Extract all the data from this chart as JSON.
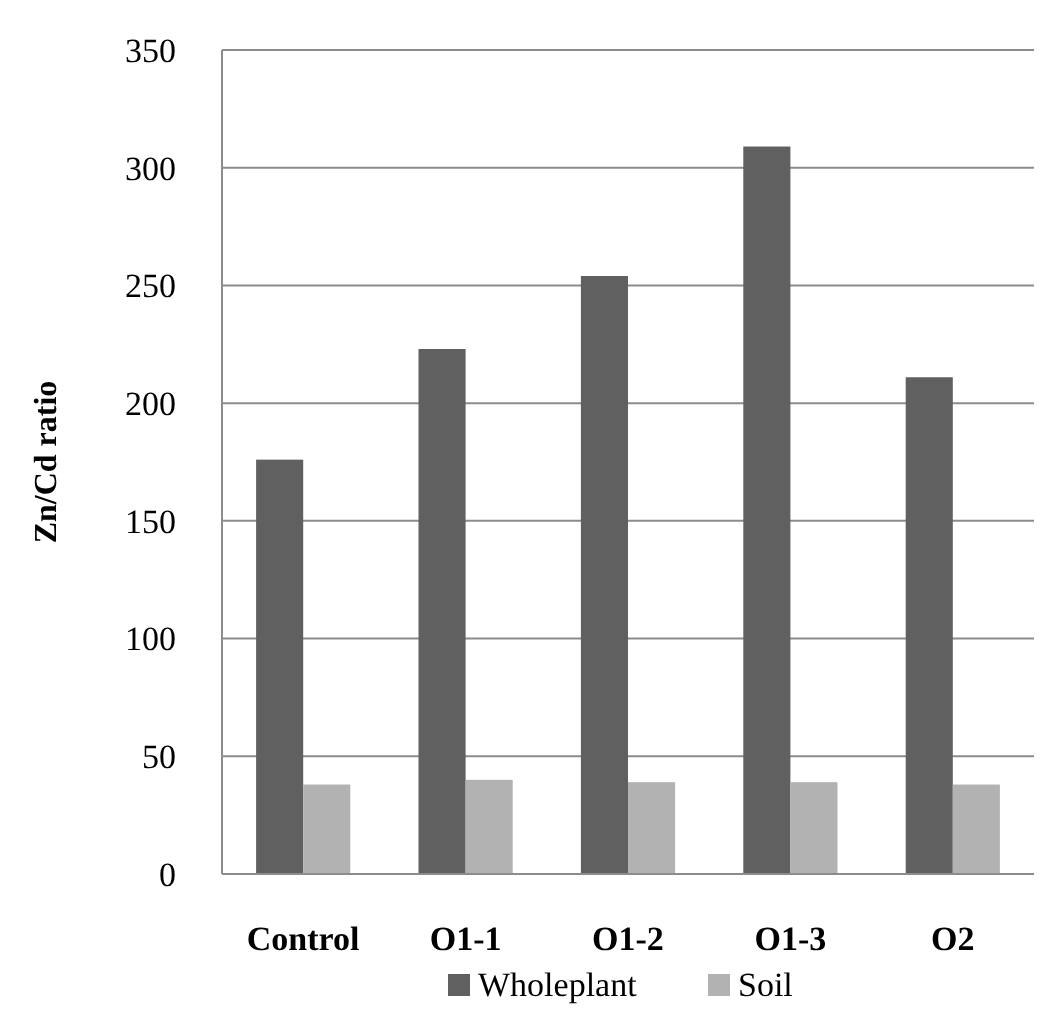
{
  "chart_data": {
    "type": "bar",
    "ylabel": "Zn/Cd ratio",
    "categories": [
      "Control",
      "O1-1",
      "O1-2",
      "O1-3",
      "O2"
    ],
    "series": [
      {
        "name": "Wholeplant",
        "color": "#606060",
        "values": [
          176,
          223,
          254,
          309,
          211
        ]
      },
      {
        "name": "Soil",
        "color": "#b2b2b2",
        "values": [
          38,
          40,
          39,
          39,
          38
        ]
      }
    ],
    "ylim": [
      0,
      350
    ],
    "yticks": [
      0,
      50,
      100,
      150,
      200,
      250,
      300,
      350
    ],
    "grid": "y",
    "legend": "bottom"
  }
}
